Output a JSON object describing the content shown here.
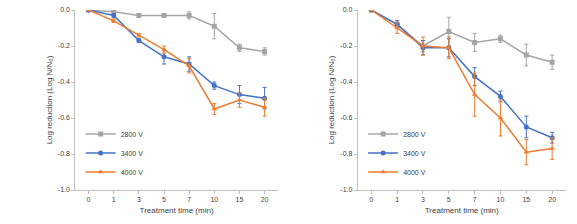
{
  "chart_data": [
    {
      "type": "line",
      "x_label": "Treatment time (min)",
      "y_label": "Log reduction (Log N/N₀)",
      "categories": [
        "0",
        "1",
        "3",
        "5",
        "7",
        "10",
        "15",
        "20"
      ],
      "ylim": [
        -1.0,
        0.0
      ],
      "yticks": [
        {
          "value": -1.0,
          "label": "-1.0"
        },
        -0.8,
        -0.6,
        -0.4,
        -0.2,
        {
          "value": 0.0,
          "label": "0.0"
        }
      ],
      "grid": false,
      "legend": "bottom left",
      "series": [
        {
          "name": "2800 V",
          "color": "#a5a5a5",
          "marker": "square",
          "values": [
            0,
            -0.01,
            -0.03,
            -0.03,
            -0.03,
            -0.09,
            -0.21,
            -0.23
          ],
          "errors": [
            0,
            0.01,
            0.01,
            0.01,
            0.02,
            0.07,
            0.02,
            0.02
          ]
        },
        {
          "name": "3400 V",
          "color": "#4472c4",
          "marker": "circle",
          "values": [
            0,
            -0.03,
            -0.17,
            -0.26,
            -0.3,
            -0.42,
            -0.47,
            -0.49
          ],
          "errors": [
            0,
            0.01,
            0.01,
            0.04,
            0.04,
            0.02,
            0.05,
            0.06
          ]
        },
        {
          "name": "4000 V",
          "color": "#ed7d31",
          "marker": "triangle-up",
          "values": [
            0,
            -0.06,
            -0.14,
            -0.22,
            -0.31,
            -0.55,
            -0.5,
            -0.54
          ],
          "errors": [
            0,
            0.01,
            0.01,
            0.02,
            0.04,
            0.03,
            0.04,
            0.05
          ]
        }
      ]
    },
    {
      "type": "line",
      "x_label": "Treatment time (min)",
      "y_label": "Log reduction (Log N/N₀)",
      "categories": [
        "0",
        "1",
        "3",
        "5",
        "7",
        "10",
        "15",
        "20"
      ],
      "ylim": [
        -1.0,
        0.0
      ],
      "yticks": [
        {
          "value": -1.0,
          "label": "-1.0"
        },
        -0.8,
        -0.6,
        -0.4,
        -0.2,
        {
          "value": 0.0,
          "label": "0.0"
        }
      ],
      "grid": false,
      "legend": "bottom left",
      "series": [
        {
          "name": "2800 V",
          "color": "#a5a5a5",
          "marker": "square",
          "values": [
            0,
            -0.08,
            -0.2,
            -0.12,
            -0.18,
            -0.16,
            -0.25,
            -0.29
          ],
          "errors": [
            0,
            0.02,
            0.03,
            0.08,
            0.05,
            0.02,
            0.06,
            0.04
          ]
        },
        {
          "name": "3400 V",
          "color": "#4472c4",
          "marker": "circle",
          "values": [
            0,
            -0.08,
            -0.21,
            -0.21,
            -0.37,
            -0.48,
            -0.65,
            -0.71
          ],
          "errors": [
            0,
            0.02,
            0.04,
            0.05,
            0.05,
            0.03,
            0.06,
            0.03
          ]
        },
        {
          "name": "4000 V",
          "color": "#ed7d31",
          "marker": "triangle-up",
          "values": [
            0,
            -0.1,
            -0.2,
            -0.21,
            -0.47,
            -0.6,
            -0.79,
            -0.77
          ],
          "errors": [
            0,
            0.03,
            0.05,
            0.06,
            0.12,
            0.1,
            0.07,
            0.06
          ]
        }
      ]
    }
  ]
}
